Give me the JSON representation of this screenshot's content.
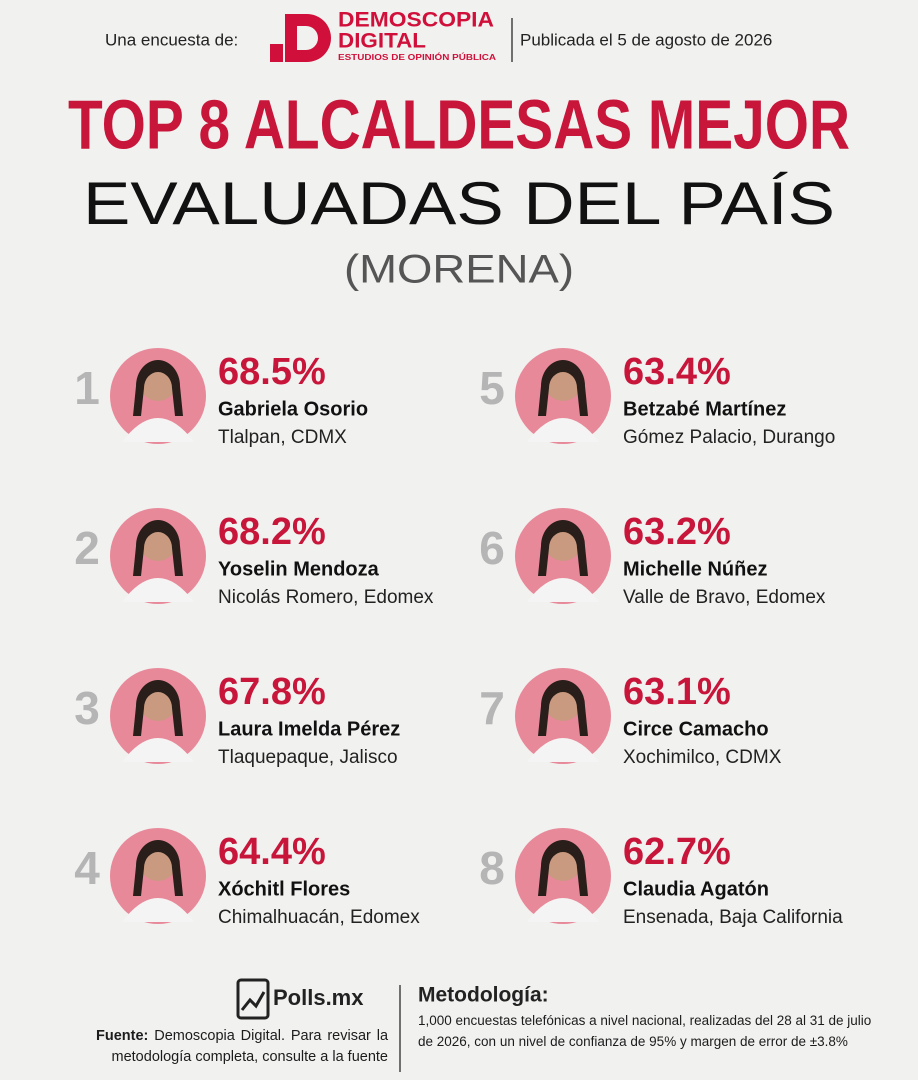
{
  "header": {
    "survey_label": "Una encuesta de:",
    "brand_line1": "DEMOSCOPIA",
    "brand_line2": "DIGITAL",
    "brand_tagline": "ESTUDIOS DE OPINIÓN PÚBLICA",
    "published": "Publicada el 5 de agosto de 2026"
  },
  "title": {
    "line1": "TOP 8 ALCALDESAS MEJOR",
    "line2": "EVALUADAS DEL PAÍS",
    "line3": "(MORENA)"
  },
  "ranking": [
    {
      "rank": "1",
      "percent": "68.5%",
      "name": "Gabriela Osorio",
      "place": "Tlalpan, CDMX"
    },
    {
      "rank": "2",
      "percent": "68.2%",
      "name": "Yoselin Mendoza",
      "place": "Nicolás Romero, Edomex"
    },
    {
      "rank": "3",
      "percent": "67.8%",
      "name": "Laura Imelda Pérez",
      "place": "Tlaquepaque, Jalisco"
    },
    {
      "rank": "4",
      "percent": "64.4%",
      "name": "Xóchitl Flores",
      "place": "Chimalhuacán, Edomex"
    },
    {
      "rank": "5",
      "percent": "63.4%",
      "name": "Betzabé Martínez",
      "place": "Gómez Palacio, Durango"
    },
    {
      "rank": "6",
      "percent": "63.2%",
      "name": "Michelle Núñez",
      "place": "Valle de Bravo, Edomex"
    },
    {
      "rank": "7",
      "percent": "63.1%",
      "name": "Circe Camacho",
      "place": "Xochimilco, CDMX"
    },
    {
      "rank": "8",
      "percent": "62.7%",
      "name": "Claudia Agatón",
      "place": "Ensenada, Baja California"
    }
  ],
  "footer": {
    "logo": "Polls.mx",
    "source_label": "Fuente:",
    "source_text": "Demoscopia Digital. Para revisar la metodología completa, consulte a la fuente",
    "method_title": "Metodología:",
    "method_text": "1,000 encuestas telefónicas a nivel nacional, realizadas del 28 al 31 de julio de 2026, con un nivel de confianza de 95% y margen de error de ±3.8%"
  }
}
